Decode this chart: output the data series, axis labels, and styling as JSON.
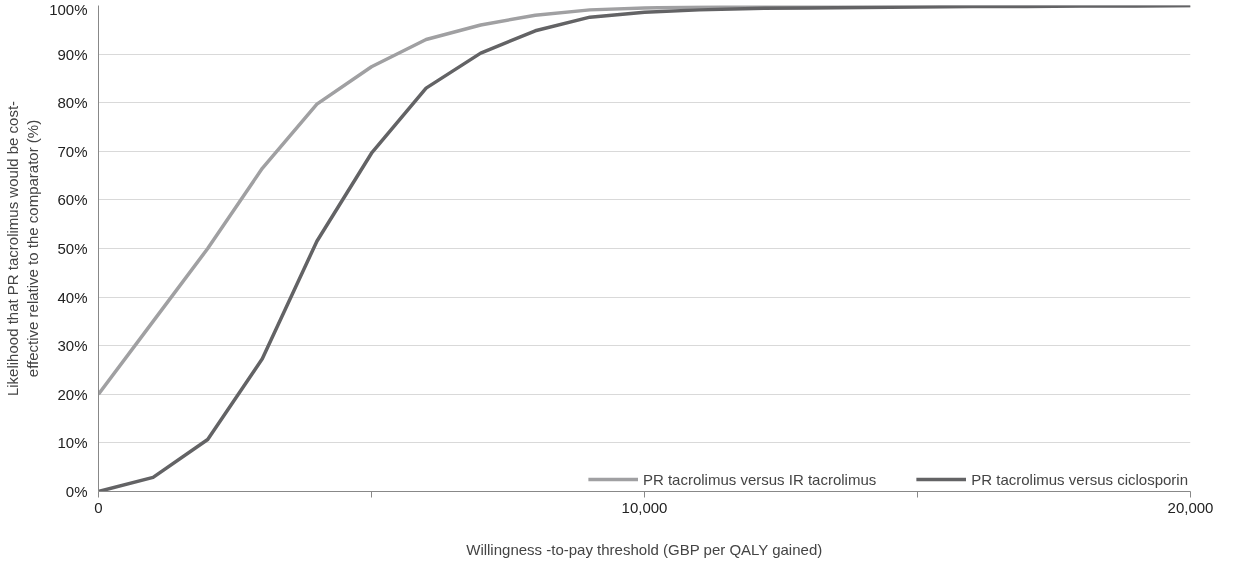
{
  "chart_data": {
    "type": "line",
    "xlabel": "Willingness -to-pay threshold (GBP per QALY gained)",
    "ylabel": "Likelihood that PR tacrolimus would be cost-\neffective relative to the comparator (%)",
    "x": [
      0,
      1000,
      2000,
      3000,
      4000,
      5000,
      6000,
      7000,
      8000,
      9000,
      10000,
      11000,
      12000,
      13000,
      14000,
      15000,
      16000,
      17000,
      18000,
      19000,
      20000
    ],
    "series": [
      {
        "name": "PR tacrolimus versus IR tacrolimus",
        "color": "#a0a0a2",
        "values": [
          20,
          35,
          50,
          66.5,
          79.7,
          87.4,
          93,
          96,
          98,
          99.1,
          99.5,
          99.7,
          99.8,
          99.9,
          99.9,
          100,
          100,
          100,
          100,
          100,
          100
        ]
      },
      {
        "name": "PR tacrolimus versus ciclosporin",
        "color": "#636365",
        "values": [
          0,
          2.9,
          10.7,
          27.3,
          51.5,
          69.6,
          83,
          90.2,
          94.8,
          97.6,
          98.6,
          99.1,
          99.4,
          99.5,
          99.6,
          99.7,
          99.8,
          99.8,
          99.9,
          99.9,
          100
        ]
      }
    ],
    "xlim": [
      0,
      20000
    ],
    "xticks": [
      0,
      {
        "value": 5000,
        "label": null
      },
      {
        "value": 10000,
        "label": "10,000"
      },
      {
        "value": 15000,
        "label": null
      },
      {
        "value": 20000,
        "label": "20,000"
      }
    ],
    "ylim": [
      0,
      100
    ],
    "yticks": [
      {
        "value": 0,
        "label": "0%"
      },
      {
        "value": 10,
        "label": "10%"
      },
      {
        "value": 20,
        "label": "20%"
      },
      {
        "value": 30,
        "label": "30%"
      },
      {
        "value": 40,
        "label": "40%"
      },
      {
        "value": 50,
        "label": "50%"
      },
      {
        "value": 60,
        "label": "60%"
      },
      {
        "value": 70,
        "label": "70%"
      },
      {
        "value": 80,
        "label": "80%"
      },
      {
        "value": 90,
        "label": "90%"
      },
      {
        "value": 100,
        "label": "100%"
      }
    ],
    "grid": "y",
    "legend": "bottom right",
    "marker": "none",
    "line_style": "solid"
  }
}
